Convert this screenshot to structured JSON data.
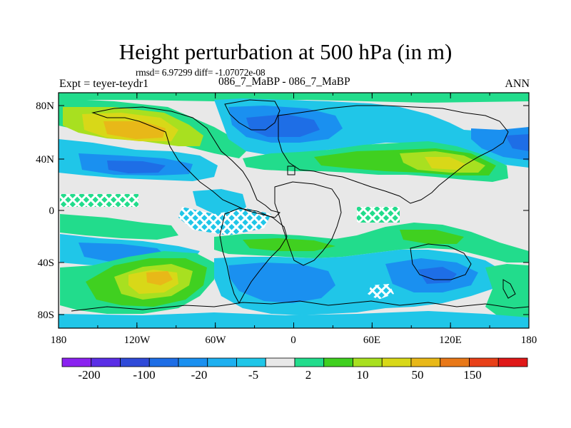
{
  "title": "Height perturbation at 500 hPa (in m)",
  "stats": "rmsd= 6.97299 diff= -1.07072e-08",
  "experiment": "Expt = teyer-teydr1",
  "case": "086_7_MaBP - 086_7_MaBP",
  "season": "ANN",
  "lat_ticks": [
    "80N",
    "40N",
    "0",
    "40S",
    "80S"
  ],
  "lon_ticks": [
    "180",
    "120W",
    "60W",
    "0",
    "60E",
    "120E",
    "180"
  ],
  "colorbar": {
    "colors": [
      "#8a22f0",
      "#5a2ee6",
      "#2f4ad8",
      "#1e6ee6",
      "#1a90f0",
      "#1eb0f0",
      "#20c6e8",
      "#e8e8e8",
      "#22dc8c",
      "#40d020",
      "#a8e020",
      "#d8d818",
      "#e8b818",
      "#e87818",
      "#e84018",
      "#e01818"
    ],
    "labels": [
      "-200",
      "-100",
      "-20",
      "-5",
      "2",
      "10",
      "50",
      "150"
    ]
  }
}
